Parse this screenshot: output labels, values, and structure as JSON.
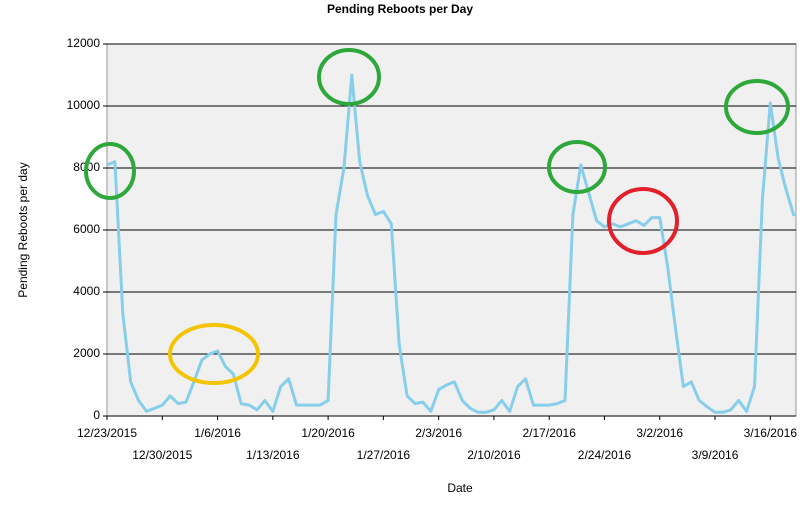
{
  "chart_data": {
    "type": "line",
    "title": "Pending Reboots per Day",
    "x_label": "Date",
    "y_label": "Pending Reboots per day",
    "x": [
      "12/23/2015",
      "12/24/2015",
      "12/25/2015",
      "12/26/2015",
      "12/27/2015",
      "12/28/2015",
      "12/29/2015",
      "12/30/2015",
      "12/31/2015",
      "1/1/2016",
      "1/2/2016",
      "1/3/2016",
      "1/4/2016",
      "1/5/2016",
      "1/6/2016",
      "1/7/2016",
      "1/8/2016",
      "1/9/2016",
      "1/10/2016",
      "1/11/2016",
      "1/12/2016",
      "1/13/2016",
      "1/14/2016",
      "1/15/2016",
      "1/16/2016",
      "1/17/2016",
      "1/18/2016",
      "1/19/2016",
      "1/20/2016",
      "1/21/2016",
      "1/22/2016",
      "1/23/2016",
      "1/24/2016",
      "1/25/2016",
      "1/26/2016",
      "1/27/2016",
      "1/28/2016",
      "1/29/2016",
      "1/30/2016",
      "1/31/2016",
      "2/1/2016",
      "2/2/2016",
      "2/3/2016",
      "2/4/2016",
      "2/5/2016",
      "2/6/2016",
      "2/7/2016",
      "2/8/2016",
      "2/9/2016",
      "2/10/2016",
      "2/11/2016",
      "2/12/2016",
      "2/13/2016",
      "2/14/2016",
      "2/15/2016",
      "2/16/2016",
      "2/17/2016",
      "2/18/2016",
      "2/19/2016",
      "2/20/2016",
      "2/21/2016",
      "2/22/2016",
      "2/23/2016",
      "2/24/2016",
      "2/25/2016",
      "2/26/2016",
      "2/27/2016",
      "2/28/2016",
      "2/29/2016",
      "3/1/2016",
      "3/2/2016",
      "3/3/2016",
      "3/4/2016",
      "3/5/2016",
      "3/6/2016",
      "3/7/2016",
      "3/8/2016",
      "3/9/2016",
      "3/10/2016",
      "3/11/2016",
      "3/12/2016",
      "3/13/2016",
      "3/14/2016",
      "3/15/2016",
      "3/16/2016",
      "3/17/2016",
      "3/18/2016",
      "3/19/2016"
    ],
    "series": [
      {
        "name": "Pending Reboots",
        "color": "#87ceeb",
        "values": [
          8100,
          8200,
          3300,
          1100,
          500,
          150,
          250,
          350,
          650,
          400,
          450,
          1100,
          1800,
          2000,
          2100,
          1600,
          1350,
          400,
          350,
          200,
          500,
          150,
          950,
          1200,
          350,
          350,
          350,
          350,
          500,
          6500,
          8000,
          11000,
          8200,
          7100,
          6500,
          6600,
          6200,
          2300,
          650,
          400,
          450,
          150,
          850,
          1000,
          1100,
          500,
          250,
          120,
          120,
          200,
          500,
          150,
          950,
          1200,
          350,
          350,
          350,
          400,
          500,
          6500,
          8100,
          7200,
          6300,
          6100,
          6200,
          6100,
          6200,
          6300,
          6150,
          6400,
          6400,
          4800,
          2800,
          950,
          1100,
          500,
          300,
          120,
          120,
          200,
          500,
          150,
          950,
          7000,
          10100,
          8300,
          7300,
          6450
        ]
      }
    ],
    "xticks": [
      "12/23/2015",
      "12/30/2015",
      "1/6/2016",
      "1/13/2016",
      "1/20/2016",
      "1/27/2016",
      "2/3/2016",
      "2/10/2016",
      "2/17/2016",
      "2/24/2016",
      "3/2/2016",
      "3/9/2016",
      "3/16/2016"
    ],
    "ylim": [
      0,
      12000
    ],
    "yticks": [
      0,
      2000,
      4000,
      6000,
      8000,
      10000,
      12000
    ],
    "grid": true
  }
}
